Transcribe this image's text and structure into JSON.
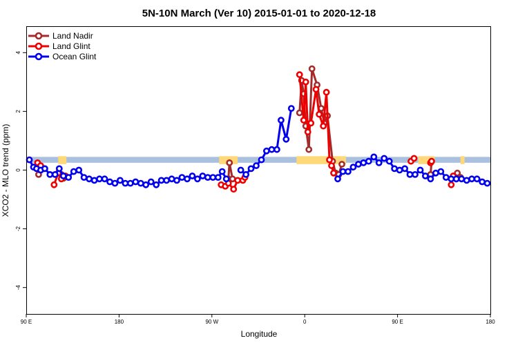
{
  "chart_data": {
    "type": "line",
    "title": "5N-10N March (Ver 10)   2015-01-01 to 2020-12-18",
    "xlabel": "Longitude",
    "ylabel": "XCO2 - MLO trend (ppm)",
    "x_ticks": [
      {
        "value": 90,
        "label": "90 E"
      },
      {
        "value": 180,
        "label": "180"
      },
      {
        "value": 270,
        "label": "90 W"
      },
      {
        "value": 360,
        "label": "0"
      },
      {
        "value": 450,
        "label": "90 E"
      },
      {
        "value": 540,
        "label": "180"
      }
    ],
    "y_ticks": [
      -4,
      -2,
      0,
      2,
      4
    ],
    "xlim": [
      90,
      540
    ],
    "ylim": [
      -4.9,
      4.9
    ],
    "grid": false,
    "legend_position": "top-left",
    "series": [
      {
        "name": "Land Nadir",
        "color": "#a52a2a",
        "segments": [
          [
            [
              102,
              -0.15
            ],
            [
              107,
              0.05
            ]
          ],
          [
            [
              124,
              -0.15
            ],
            [
              126,
              -0.28
            ]
          ],
          [
            [
              286,
              -0.3
            ],
            [
              287,
              0.25
            ],
            [
              290,
              -0.3
            ]
          ],
          [
            [
              355,
              1.95
            ],
            [
              357,
              3.05
            ],
            [
              359,
              2.6
            ],
            [
              361,
              1.5
            ],
            [
              364,
              0.7
            ],
            [
              367,
              3.45
            ],
            [
              372,
              2.9
            ],
            [
              376,
              2.1
            ],
            [
              379,
              1.6
            ],
            [
              382,
              1.85
            ],
            [
              387,
              0.3
            ],
            [
              390,
              -0.1
            ],
            [
              393,
              -0.15
            ],
            [
              396,
              0.2
            ]
          ],
          [
            [
              482,
              -0.15
            ],
            [
              483,
              0.3
            ]
          ],
          [
            [
              508,
              -0.1
            ],
            [
              511,
              -0.25
            ]
          ]
        ]
      },
      {
        "name": "Land Glint",
        "color": "#ee0000",
        "segments": [
          [
            [
              101,
              0.25
            ],
            [
              104,
              0.15
            ]
          ],
          [
            [
              117,
              -0.5
            ],
            [
              121,
              -0.1
            ],
            [
              124,
              -0.3
            ],
            [
              128,
              -0.2
            ]
          ],
          [
            [
              279,
              -0.5
            ],
            [
              283,
              -0.55
            ],
            [
              286,
              -0.45
            ],
            [
              291,
              -0.65
            ],
            [
              295,
              -0.35
            ],
            [
              300,
              -0.35
            ],
            [
              302,
              -0.25
            ]
          ],
          [
            [
              355,
              3.25
            ],
            [
              359,
              1.7
            ],
            [
              361,
              3.0
            ],
            [
              363,
              1.3
            ],
            [
              366,
              1.6
            ],
            [
              371,
              2.75
            ],
            [
              374,
              1.9
            ],
            [
              378,
              1.5
            ],
            [
              381,
              2.65
            ],
            [
              384,
              0.35
            ],
            [
              386,
              0.15
            ],
            [
              388,
              -0.1
            ]
          ],
          [
            [
              463,
              0.3
            ],
            [
              466,
              0.4
            ]
          ],
          [
            [
              482,
              0.25
            ],
            [
              483,
              0.3
            ]
          ],
          [
            [
              502,
              -0.5
            ],
            [
              504,
              -0.2
            ],
            [
              507,
              -0.3
            ]
          ]
        ]
      },
      {
        "name": "Ocean Glint",
        "color": "#0000ee",
        "segments": [
          [
            [
              93,
              0.35
            ],
            [
              97,
              0.1
            ],
            [
              100,
              0.05
            ],
            [
              104,
              0.0
            ],
            [
              108,
              0.05
            ],
            [
              113,
              -0.15
            ],
            [
              118,
              -0.15
            ],
            [
              122,
              0.05
            ],
            [
              126,
              -0.2
            ],
            [
              131,
              -0.25
            ],
            [
              136,
              -0.05
            ],
            [
              141,
              0.0
            ],
            [
              146,
              -0.25
            ],
            [
              151,
              -0.3
            ],
            [
              156,
              -0.35
            ],
            [
              161,
              -0.3
            ],
            [
              166,
              -0.3
            ],
            [
              171,
              -0.4
            ],
            [
              176,
              -0.45
            ],
            [
              181,
              -0.35
            ],
            [
              186,
              -0.45
            ],
            [
              191,
              -0.45
            ],
            [
              196,
              -0.4
            ],
            [
              201,
              -0.45
            ],
            [
              206,
              -0.5
            ],
            [
              211,
              -0.4
            ],
            [
              216,
              -0.5
            ],
            [
              221,
              -0.35
            ],
            [
              226,
              -0.35
            ],
            [
              231,
              -0.3
            ],
            [
              236,
              -0.35
            ],
            [
              241,
              -0.25
            ],
            [
              246,
              -0.3
            ],
            [
              251,
              -0.2
            ],
            [
              256,
              -0.3
            ],
            [
              261,
              -0.2
            ],
            [
              266,
              -0.25
            ],
            [
              271,
              -0.25
            ],
            [
              276,
              -0.25
            ],
            [
              280,
              -0.05
            ],
            [
              284,
              -0.3
            ]
          ],
          [
            [
              298,
              0.0
            ],
            [
              303,
              -0.15
            ],
            [
              308,
              0.05
            ],
            [
              313,
              0.15
            ],
            [
              318,
              0.35
            ],
            [
              323,
              0.65
            ],
            [
              328,
              0.7
            ],
            [
              333,
              0.7
            ],
            [
              337,
              1.7
            ],
            [
              342,
              1.05
            ],
            [
              347,
              2.1
            ]
          ],
          [
            [
              392,
              -0.3
            ],
            [
              397,
              -0.05
            ],
            [
              402,
              -0.05
            ],
            [
              407,
              0.1
            ],
            [
              412,
              0.2
            ],
            [
              417,
              0.25
            ],
            [
              422,
              0.3
            ],
            [
              427,
              0.45
            ],
            [
              432,
              0.25
            ],
            [
              437,
              0.4
            ],
            [
              442,
              0.3
            ],
            [
              447,
              0.05
            ],
            [
              452,
              0.0
            ],
            [
              457,
              0.05
            ],
            [
              462,
              -0.15
            ],
            [
              467,
              -0.15
            ],
            [
              472,
              0.0
            ],
            [
              477,
              -0.2
            ],
            [
              482,
              -0.3
            ],
            [
              487,
              -0.1
            ],
            [
              492,
              -0.05
            ],
            [
              497,
              -0.25
            ],
            [
              502,
              -0.3
            ],
            [
              507,
              -0.3
            ],
            [
              512,
              -0.3
            ],
            [
              517,
              -0.35
            ],
            [
              522,
              -0.3
            ],
            [
              527,
              -0.3
            ],
            [
              532,
              -0.4
            ],
            [
              537,
              -0.45
            ]
          ]
        ]
      }
    ],
    "background_band": {
      "y_range": [
        0.25,
        0.45
      ],
      "color": "#a9c0de",
      "land_color": "#ffd87a",
      "land_x_ranges": [
        [
          121,
          129
        ],
        [
          277,
          295
        ],
        [
          352,
          400
        ],
        [
          470,
          486
        ],
        [
          511,
          515
        ]
      ]
    }
  }
}
